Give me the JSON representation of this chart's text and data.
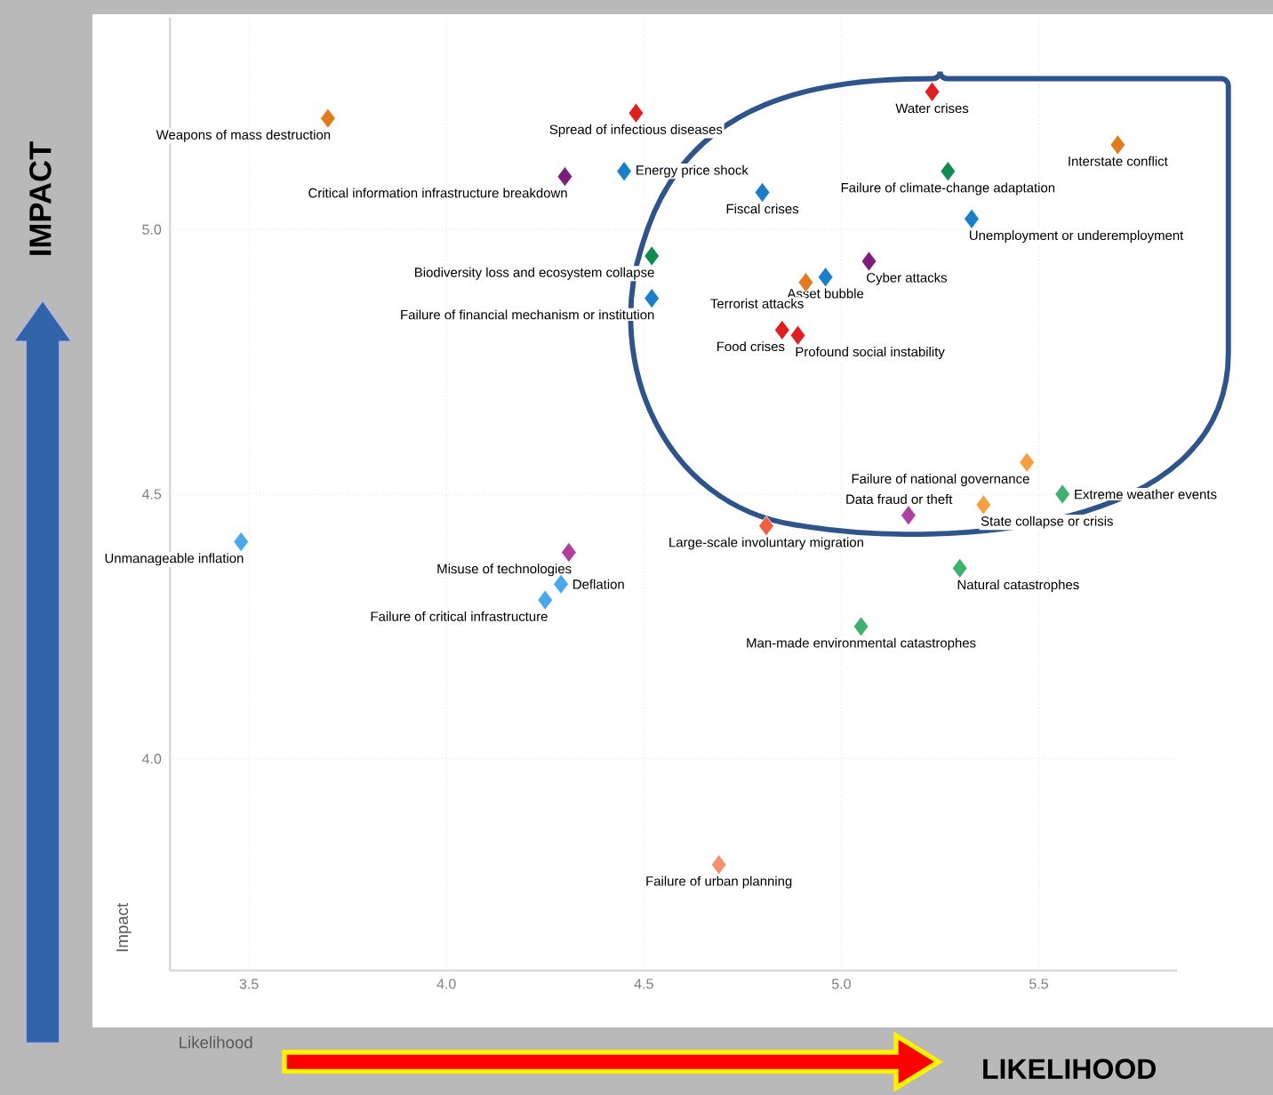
{
  "chart_data": {
    "type": "scatter",
    "xlabel": "Likelihood",
    "ylabel": "Impact",
    "annotations": [
      "IMPACT",
      "LIKELIHOOD"
    ],
    "xlim": [
      3.3,
      5.85
    ],
    "ylim": [
      3.6,
      5.4
    ],
    "xticks": [
      {
        "value": 3.5,
        "label": "3.5"
      },
      {
        "value": 4,
        "label": "4.0"
      },
      {
        "value": 4.5,
        "label": "4.5"
      },
      {
        "value": 5,
        "label": "5.0"
      },
      {
        "value": 5.5,
        "label": "5.5"
      }
    ],
    "yticks": [
      {
        "value": 4,
        "label": "4.0"
      },
      {
        "value": 4.5,
        "label": "4.5"
      },
      {
        "value": 5,
        "label": "5.0"
      }
    ],
    "grid": true,
    "marker": "diamond",
    "series": [
      {
        "name": "Weapons of mass destruction",
        "color": "#e07b20",
        "x": [
          3.7
        ],
        "values": [
          5.21
        ]
      },
      {
        "name": "Spread of infectious diseases",
        "color": "#e02020",
        "x": [
          4.48
        ],
        "values": [
          5.22
        ]
      },
      {
        "name": "Critical information infrastructure breakdown",
        "color": "#7b1f7b",
        "x": [
          4.3
        ],
        "values": [
          5.1
        ]
      },
      {
        "name": "Energy price shock",
        "color": "#1a7fc8",
        "x": [
          4.45
        ],
        "values": [
          5.11
        ]
      },
      {
        "name": "Water crises",
        "color": "#e02020",
        "x": [
          5.23
        ],
        "values": [
          5.26
        ]
      },
      {
        "name": "Interstate conflict",
        "color": "#e07b20",
        "x": [
          5.7
        ],
        "values": [
          5.16
        ]
      },
      {
        "name": "Failure of climate-change adaptation",
        "color": "#108a50",
        "x": [
          5.27
        ],
        "values": [
          5.11
        ]
      },
      {
        "name": "Fiscal crises",
        "color": "#1a7fc8",
        "x": [
          4.8
        ],
        "values": [
          5.07
        ]
      },
      {
        "name": "Unemployment or underemployment",
        "color": "#1a7fc8",
        "x": [
          5.33
        ],
        "values": [
          5.02
        ]
      },
      {
        "name": "Biodiversity loss and ecosystem collapse",
        "color": "#108a50",
        "x": [
          4.52
        ],
        "values": [
          4.95
        ]
      },
      {
        "name": "Failure of financial mechanism or institution",
        "color": "#1a7fc8",
        "x": [
          4.52
        ],
        "values": [
          4.87
        ]
      },
      {
        "name": "Cyber attacks",
        "color": "#7b1f7b",
        "x": [
          5.07
        ],
        "values": [
          4.94
        ]
      },
      {
        "name": "Asset bubble",
        "color": "#1a7fc8",
        "x": [
          4.96
        ],
        "values": [
          4.91
        ]
      },
      {
        "name": "Terrorist attacks",
        "color": "#e07b20",
        "x": [
          4.91
        ],
        "values": [
          4.9
        ]
      },
      {
        "name": "Food crises",
        "color": "#e02020",
        "x": [
          4.85
        ],
        "values": [
          4.81
        ]
      },
      {
        "name": "Profound social instability",
        "color": "#e02020",
        "x": [
          4.89
        ],
        "values": [
          4.8
        ]
      },
      {
        "name": "Failure of national governance",
        "color": "#f5a040",
        "x": [
          5.47
        ],
        "values": [
          4.56
        ]
      },
      {
        "name": "Extreme weather events",
        "color": "#40b070",
        "x": [
          5.56
        ],
        "values": [
          4.5
        ]
      },
      {
        "name": "State collapse or crisis",
        "color": "#f5a040",
        "x": [
          5.36
        ],
        "values": [
          4.48
        ]
      },
      {
        "name": "Data fraud or theft",
        "color": "#b040a0",
        "x": [
          5.17
        ],
        "values": [
          4.46
        ]
      },
      {
        "name": "Large-scale involuntary migration",
        "color": "#f06040",
        "x": [
          4.81
        ],
        "values": [
          4.44
        ]
      },
      {
        "name": "Natural catastrophes",
        "color": "#40b070",
        "x": [
          5.3
        ],
        "values": [
          4.36
        ]
      },
      {
        "name": "Man-made environmental catastrophes",
        "color": "#40b070",
        "x": [
          5.05
        ],
        "values": [
          4.25
        ]
      },
      {
        "name": "Unmanageable inflation",
        "color": "#4aa8ea",
        "x": [
          3.48
        ],
        "values": [
          4.41
        ]
      },
      {
        "name": "Misuse of technologies",
        "color": "#b040a0",
        "x": [
          4.31
        ],
        "values": [
          4.39
        ]
      },
      {
        "name": "Deflation",
        "color": "#4aa8ea",
        "x": [
          4.29
        ],
        "values": [
          4.33
        ]
      },
      {
        "name": "Failure of critical infrastructure",
        "color": "#4aa8ea",
        "x": [
          4.25
        ],
        "values": [
          4.3
        ]
      },
      {
        "name": "Failure of urban planning",
        "color": "#f5906a",
        "x": [
          4.69
        ],
        "values": [
          3.8
        ]
      }
    ]
  }
}
